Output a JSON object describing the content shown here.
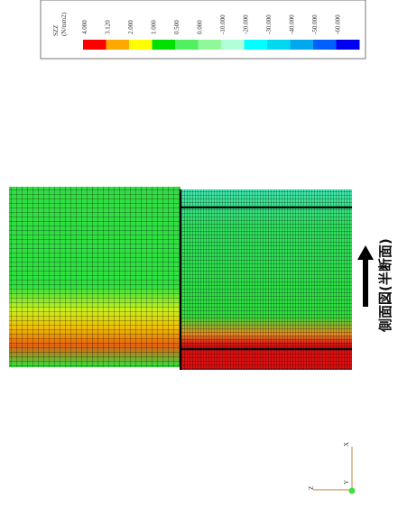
{
  "legend": {
    "title": "SZZ",
    "unit": "(N/mm2)",
    "labels": [
      "4.000",
      "3.120",
      "2.000",
      "1.000",
      "0.500",
      "0.000",
      "-10.000",
      "-20.000",
      "-30.000",
      "-40.000",
      "-50.000",
      "-60.000"
    ],
    "colors": [
      "#ff0000",
      "#ffa800",
      "#ffff00",
      "#00e000",
      "#50f060",
      "#90f898",
      "#b0ffd8",
      "#00ffff",
      "#00d8f0",
      "#00a8f0",
      "#0060ff",
      "#0000f0"
    ]
  },
  "caption": "側面図(半断面)",
  "axes": {
    "x": "X",
    "y": "Y",
    "z": "Z"
  }
}
